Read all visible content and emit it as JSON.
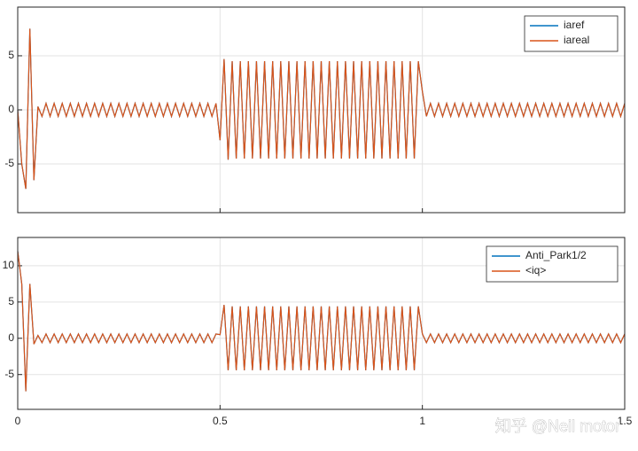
{
  "chart_data": [
    {
      "type": "line",
      "grid": true,
      "x_tick_labels": false,
      "legend": "upper right",
      "xlim": [
        0,
        1.5
      ],
      "xticks": [
        0,
        0.5,
        1,
        1.5
      ],
      "ylim": [
        -9.5,
        9.5
      ],
      "yticks": [
        -5,
        0,
        5
      ],
      "x": [
        0,
        0.01,
        0.02,
        0.03,
        0.04,
        0.05,
        0.06,
        0.07,
        0.08,
        0.09,
        0.1,
        0.11,
        0.12,
        0.13,
        0.14,
        0.15,
        0.16,
        0.17,
        0.18,
        0.19,
        0.2,
        0.21,
        0.22,
        0.23,
        0.24,
        0.25,
        0.26,
        0.27,
        0.28,
        0.29,
        0.3,
        0.31,
        0.32,
        0.33,
        0.34,
        0.35,
        0.36,
        0.37,
        0.38,
        0.39,
        0.4,
        0.41,
        0.42,
        0.43,
        0.44,
        0.45,
        0.46,
        0.47,
        0.48,
        0.49,
        0.5,
        0.51,
        0.52,
        0.53,
        0.54,
        0.55,
        0.56,
        0.57,
        0.58,
        0.59,
        0.6,
        0.61,
        0.62,
        0.63,
        0.64,
        0.65,
        0.66,
        0.67,
        0.68,
        0.69,
        0.7,
        0.71,
        0.72,
        0.73,
        0.74,
        0.75,
        0.76,
        0.77,
        0.78,
        0.79,
        0.8,
        0.81,
        0.82,
        0.83,
        0.84,
        0.85,
        0.86,
        0.87,
        0.88,
        0.89,
        0.9,
        0.91,
        0.92,
        0.93,
        0.94,
        0.95,
        0.96,
        0.97,
        0.98,
        0.99,
        1,
        1.01,
        1.02,
        1.03,
        1.04,
        1.05,
        1.06,
        1.07,
        1.08,
        1.09,
        1.1,
        1.11,
        1.12,
        1.13,
        1.14,
        1.15,
        1.16,
        1.17,
        1.18,
        1.19,
        1.2,
        1.21,
        1.22,
        1.23,
        1.24,
        1.25,
        1.26,
        1.27,
        1.28,
        1.29,
        1.3,
        1.31,
        1.32,
        1.33,
        1.34,
        1.35,
        1.36,
        1.37,
        1.38,
        1.39,
        1.4,
        1.41,
        1.42,
        1.43,
        1.44,
        1.45,
        1.46,
        1.47,
        1.48,
        1.49,
        1.5
      ],
      "series": [
        {
          "name": "iaref",
          "color": "#0072bd",
          "values": [
            0,
            -5,
            -7.3,
            7.5,
            -6.5,
            0.3,
            -0.6,
            0.6,
            -0.6,
            0.6,
            -0.6,
            0.6,
            -0.6,
            0.6,
            -0.6,
            0.6,
            -0.6,
            0.6,
            -0.6,
            0.6,
            -0.6,
            0.6,
            -0.6,
            0.6,
            -0.6,
            0.6,
            -0.6,
            0.6,
            -0.6,
            0.6,
            -0.6,
            0.6,
            -0.6,
            0.6,
            -0.6,
            0.6,
            -0.6,
            0.6,
            -0.6,
            0.6,
            -0.6,
            0.6,
            -0.6,
            0.6,
            -0.6,
            0.6,
            -0.6,
            0.6,
            -0.6,
            0.6,
            -2.8,
            4.7,
            -4.6,
            4.5,
            -4.5,
            4.5,
            -4.5,
            4.5,
            -4.5,
            4.5,
            -4.5,
            4.5,
            -4.5,
            4.5,
            -4.5,
            4.5,
            -4.5,
            4.5,
            -4.5,
            4.5,
            -4.5,
            4.5,
            -4.5,
            4.5,
            -4.5,
            4.5,
            -4.5,
            4.5,
            -4.5,
            4.5,
            -4.5,
            4.5,
            -4.5,
            4.5,
            -4.5,
            4.5,
            -4.5,
            4.5,
            -4.5,
            4.5,
            -4.5,
            4.5,
            -4.5,
            4.5,
            -4.5,
            4.5,
            -4.5,
            4.5,
            -4.5,
            4.5,
            1.7,
            -0.6,
            0.6,
            -0.6,
            0.6,
            -0.6,
            0.6,
            -0.6,
            0.6,
            -0.6,
            0.6,
            -0.6,
            0.6,
            -0.6,
            0.6,
            -0.6,
            0.6,
            -0.6,
            0.6,
            -0.6,
            0.6,
            -0.6,
            0.6,
            -0.6,
            0.6,
            -0.6,
            0.6,
            -0.6,
            0.6,
            -0.6,
            0.6,
            -0.6,
            0.6,
            -0.6,
            0.6,
            -0.6,
            0.6,
            -0.6,
            0.6,
            -0.6,
            0.6,
            -0.6,
            0.6,
            -0.6,
            0.6,
            -0.6,
            0.6,
            -0.6,
            0.6,
            -0.6,
            0.6
          ]
        },
        {
          "name": "iareal",
          "color": "#d95319",
          "values": [
            0,
            -5,
            -7.3,
            7.5,
            -6.5,
            0.3,
            -0.6,
            0.6,
            -0.6,
            0.6,
            -0.6,
            0.6,
            -0.6,
            0.6,
            -0.6,
            0.6,
            -0.6,
            0.6,
            -0.6,
            0.6,
            -0.6,
            0.6,
            -0.6,
            0.6,
            -0.6,
            0.6,
            -0.6,
            0.6,
            -0.6,
            0.6,
            -0.6,
            0.6,
            -0.6,
            0.6,
            -0.6,
            0.6,
            -0.6,
            0.6,
            -0.6,
            0.6,
            -0.6,
            0.6,
            -0.6,
            0.6,
            -0.6,
            0.6,
            -0.6,
            0.6,
            -0.6,
            0.6,
            -2.8,
            4.7,
            -4.6,
            4.5,
            -4.5,
            4.5,
            -4.5,
            4.5,
            -4.5,
            4.5,
            -4.5,
            4.5,
            -4.5,
            4.5,
            -4.5,
            4.5,
            -4.5,
            4.5,
            -4.5,
            4.5,
            -4.5,
            4.5,
            -4.5,
            4.5,
            -4.5,
            4.5,
            -4.5,
            4.5,
            -4.5,
            4.5,
            -4.5,
            4.5,
            -4.5,
            4.5,
            -4.5,
            4.5,
            -4.5,
            4.5,
            -4.5,
            4.5,
            -4.5,
            4.5,
            -4.5,
            4.5,
            -4.5,
            4.5,
            -4.5,
            4.5,
            -4.5,
            4.5,
            1.7,
            -0.6,
            0.6,
            -0.6,
            0.6,
            -0.6,
            0.6,
            -0.6,
            0.6,
            -0.6,
            0.6,
            -0.6,
            0.6,
            -0.6,
            0.6,
            -0.6,
            0.6,
            -0.6,
            0.6,
            -0.6,
            0.6,
            -0.6,
            0.6,
            -0.6,
            0.6,
            -0.6,
            0.6,
            -0.6,
            0.6,
            -0.6,
            0.6,
            -0.6,
            0.6,
            -0.6,
            0.6,
            -0.6,
            0.6,
            -0.6,
            0.6,
            -0.6,
            0.6,
            -0.6,
            0.6,
            -0.6,
            0.6,
            -0.6,
            0.6,
            -0.6,
            0.6,
            -0.6,
            0.6
          ]
        }
      ]
    },
    {
      "type": "line",
      "grid": true,
      "x_tick_labels": true,
      "legend": "upper right",
      "xlim": [
        0,
        1.5
      ],
      "xticks": [
        0,
        0.5,
        1,
        1.5
      ],
      "ylim": [
        -9.8,
        13.9
      ],
      "yticks": [
        -5,
        0,
        5,
        10
      ],
      "x": [
        0,
        0.01,
        0.02,
        0.03,
        0.04,
        0.05,
        0.06,
        0.07,
        0.08,
        0.09,
        0.1,
        0.11,
        0.12,
        0.13,
        0.14,
        0.15,
        0.16,
        0.17,
        0.18,
        0.19,
        0.2,
        0.21,
        0.22,
        0.23,
        0.24,
        0.25,
        0.26,
        0.27,
        0.28,
        0.29,
        0.3,
        0.31,
        0.32,
        0.33,
        0.34,
        0.35,
        0.36,
        0.37,
        0.38,
        0.39,
        0.4,
        0.41,
        0.42,
        0.43,
        0.44,
        0.45,
        0.46,
        0.47,
        0.48,
        0.49,
        0.5,
        0.51,
        0.52,
        0.53,
        0.54,
        0.55,
        0.56,
        0.57,
        0.58,
        0.59,
        0.6,
        0.61,
        0.62,
        0.63,
        0.64,
        0.65,
        0.66,
        0.67,
        0.68,
        0.69,
        0.7,
        0.71,
        0.72,
        0.73,
        0.74,
        0.75,
        0.76,
        0.77,
        0.78,
        0.79,
        0.8,
        0.81,
        0.82,
        0.83,
        0.84,
        0.85,
        0.86,
        0.87,
        0.88,
        0.89,
        0.9,
        0.91,
        0.92,
        0.93,
        0.94,
        0.95,
        0.96,
        0.97,
        0.98,
        0.99,
        1,
        1.01,
        1.02,
        1.03,
        1.04,
        1.05,
        1.06,
        1.07,
        1.08,
        1.09,
        1.1,
        1.11,
        1.12,
        1.13,
        1.14,
        1.15,
        1.16,
        1.17,
        1.18,
        1.19,
        1.2,
        1.21,
        1.22,
        1.23,
        1.24,
        1.25,
        1.26,
        1.27,
        1.28,
        1.29,
        1.3,
        1.31,
        1.32,
        1.33,
        1.34,
        1.35,
        1.36,
        1.37,
        1.38,
        1.39,
        1.4,
        1.41,
        1.42,
        1.43,
        1.44,
        1.45,
        1.46,
        1.47,
        1.48,
        1.49,
        1.5
      ],
      "series": [
        {
          "name": "Anti_Park1/2",
          "color": "#0072bd",
          "values": [
            12,
            7.5,
            -7.3,
            7.5,
            -0.8,
            0.4,
            -0.6,
            0.6,
            -0.6,
            0.6,
            -0.6,
            0.6,
            -0.6,
            0.6,
            -0.6,
            0.6,
            -0.6,
            0.6,
            -0.6,
            0.6,
            -0.6,
            0.6,
            -0.6,
            0.6,
            -0.6,
            0.6,
            -0.6,
            0.6,
            -0.6,
            0.6,
            -0.6,
            0.6,
            -0.6,
            0.6,
            -0.6,
            0.6,
            -0.6,
            0.6,
            -0.6,
            0.6,
            -0.6,
            0.6,
            -0.6,
            0.6,
            -0.6,
            0.6,
            -0.6,
            0.6,
            -0.6,
            0.6,
            0.5,
            4.6,
            -4.4,
            4.4,
            -4.4,
            4.4,
            -4.4,
            4.4,
            -4.4,
            4.4,
            -4.4,
            4.4,
            -4.4,
            4.4,
            -4.4,
            4.4,
            -4.4,
            4.4,
            -4.4,
            4.4,
            -4.4,
            4.4,
            -4.4,
            4.4,
            -4.4,
            4.4,
            -4.4,
            4.4,
            -4.4,
            4.4,
            -4.4,
            4.4,
            -4.4,
            4.4,
            -4.4,
            4.4,
            -4.4,
            4.4,
            -4.4,
            4.4,
            -4.4,
            4.4,
            -4.4,
            4.4,
            -4.4,
            4.4,
            -4.4,
            4.4,
            -4.4,
            4.4,
            0.6,
            -0.6,
            0.6,
            -0.6,
            0.6,
            -0.6,
            0.6,
            -0.6,
            0.6,
            -0.6,
            0.6,
            -0.6,
            0.6,
            -0.6,
            0.6,
            -0.6,
            0.6,
            -0.6,
            0.6,
            -0.6,
            0.6,
            -0.6,
            0.6,
            -0.6,
            0.6,
            -0.6,
            0.6,
            -0.6,
            0.6,
            -0.6,
            0.6,
            -0.6,
            0.6,
            -0.6,
            0.6,
            -0.6,
            0.6,
            -0.6,
            0.6,
            -0.6,
            0.6,
            -0.6,
            0.6,
            -0.6,
            0.6,
            -0.6,
            0.6,
            -0.6,
            0.6,
            -0.6,
            0.6
          ]
        },
        {
          "name": "<iq>",
          "color": "#d95319",
          "values": [
            12,
            7.5,
            -7.3,
            7.5,
            -0.8,
            0.4,
            -0.6,
            0.6,
            -0.6,
            0.6,
            -0.6,
            0.6,
            -0.6,
            0.6,
            -0.6,
            0.6,
            -0.6,
            0.6,
            -0.6,
            0.6,
            -0.6,
            0.6,
            -0.6,
            0.6,
            -0.6,
            0.6,
            -0.6,
            0.6,
            -0.6,
            0.6,
            -0.6,
            0.6,
            -0.6,
            0.6,
            -0.6,
            0.6,
            -0.6,
            0.6,
            -0.6,
            0.6,
            -0.6,
            0.6,
            -0.6,
            0.6,
            -0.6,
            0.6,
            -0.6,
            0.6,
            -0.6,
            0.6,
            0.5,
            4.6,
            -4.4,
            4.4,
            -4.4,
            4.4,
            -4.4,
            4.4,
            -4.4,
            4.4,
            -4.4,
            4.4,
            -4.4,
            4.4,
            -4.4,
            4.4,
            -4.4,
            4.4,
            -4.4,
            4.4,
            -4.4,
            4.4,
            -4.4,
            4.4,
            -4.4,
            4.4,
            -4.4,
            4.4,
            -4.4,
            4.4,
            -4.4,
            4.4,
            -4.4,
            4.4,
            -4.4,
            4.4,
            -4.4,
            4.4,
            -4.4,
            4.4,
            -4.4,
            4.4,
            -4.4,
            4.4,
            -4.4,
            4.4,
            -4.4,
            4.4,
            -4.4,
            4.4,
            0.6,
            -0.6,
            0.6,
            -0.6,
            0.6,
            -0.6,
            0.6,
            -0.6,
            0.6,
            -0.6,
            0.6,
            -0.6,
            0.6,
            -0.6,
            0.6,
            -0.6,
            0.6,
            -0.6,
            0.6,
            -0.6,
            0.6,
            -0.6,
            0.6,
            -0.6,
            0.6,
            -0.6,
            0.6,
            -0.6,
            0.6,
            -0.6,
            0.6,
            -0.6,
            0.6,
            -0.6,
            0.6,
            -0.6,
            0.6,
            -0.6,
            0.6,
            -0.6,
            0.6,
            -0.6,
            0.6,
            -0.6,
            0.6,
            -0.6,
            0.6,
            -0.6,
            0.6,
            -0.6,
            0.6
          ]
        }
      ]
    }
  ],
  "watermark": "知乎 @Neil motor"
}
